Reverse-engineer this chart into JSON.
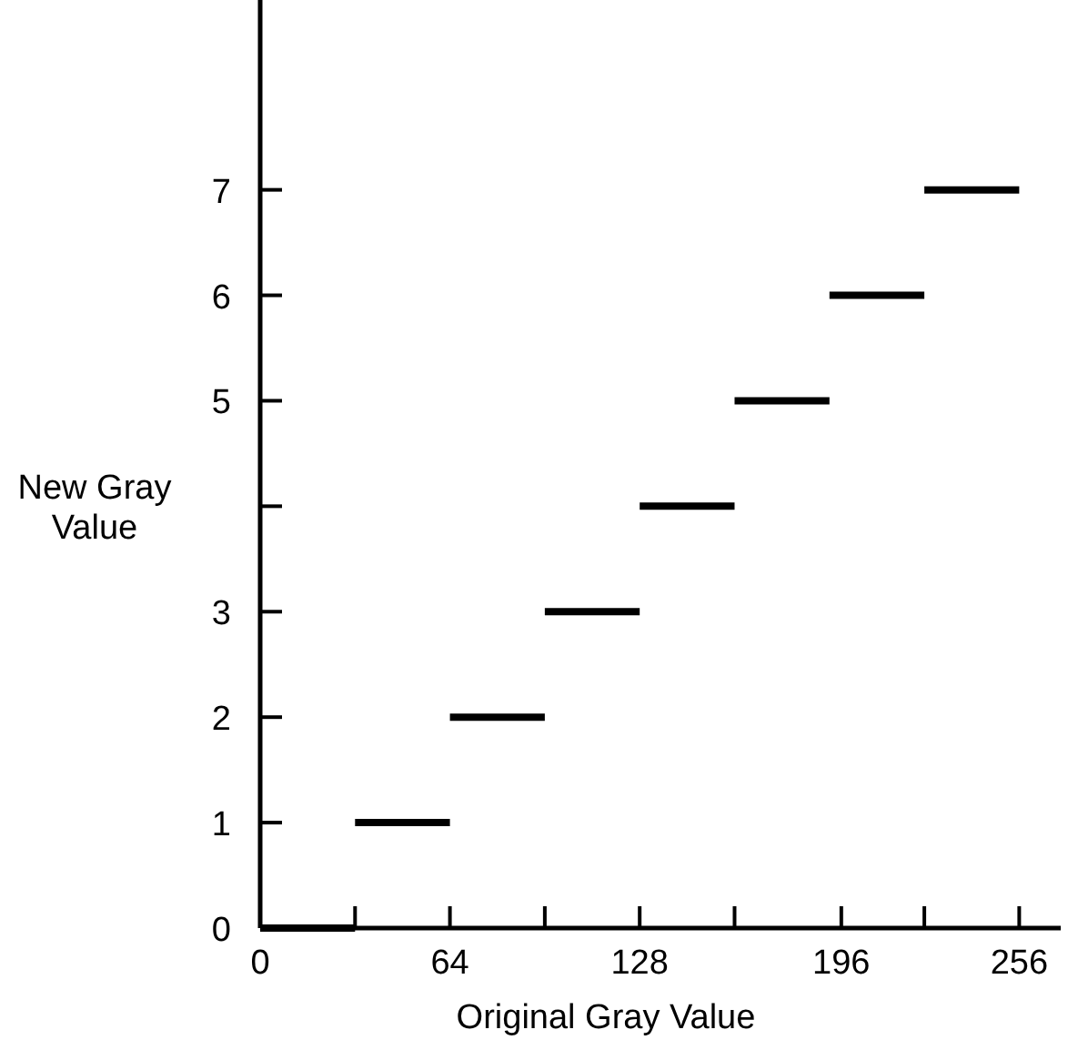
{
  "chart_data": {
    "type": "line",
    "xlabel": "Original Gray Value",
    "ylabel": "New Gray Value",
    "series": [
      {
        "color": "#000000",
        "x": [
          0,
          32
        ],
        "values": [
          0,
          0
        ]
      },
      {
        "color": "#000000",
        "x": [
          32,
          64
        ],
        "values": [
          1,
          1
        ]
      },
      {
        "color": "#000000",
        "x": [
          64,
          96
        ],
        "values": [
          2,
          2
        ]
      },
      {
        "color": "#000000",
        "x": [
          96,
          128
        ],
        "values": [
          3,
          3
        ]
      },
      {
        "color": "#000000",
        "x": [
          128,
          160
        ],
        "values": [
          4,
          4
        ]
      },
      {
        "color": "#000000",
        "x": [
          160,
          192
        ],
        "values": [
          5,
          5
        ]
      },
      {
        "color": "#000000",
        "x": [
          192,
          224
        ],
        "values": [
          6,
          6
        ]
      },
      {
        "color": "#000000",
        "x": [
          224,
          256
        ],
        "values": [
          7,
          7
        ]
      }
    ],
    "xlim": [
      0,
      270
    ],
    "ylim": [
      0,
      8.8
    ],
    "xticks": [
      0,
      {
        "value": 32,
        "label": null
      },
      64,
      {
        "value": 96,
        "label": null
      },
      128,
      {
        "value": 160,
        "label": null
      },
      196,
      {
        "value": 224,
        "label": null
      },
      256
    ],
    "yticks": [
      0,
      1,
      2,
      3,
      {
        "value": 4,
        "label": null
      },
      5,
      6,
      7
    ],
    "grid": false
  }
}
